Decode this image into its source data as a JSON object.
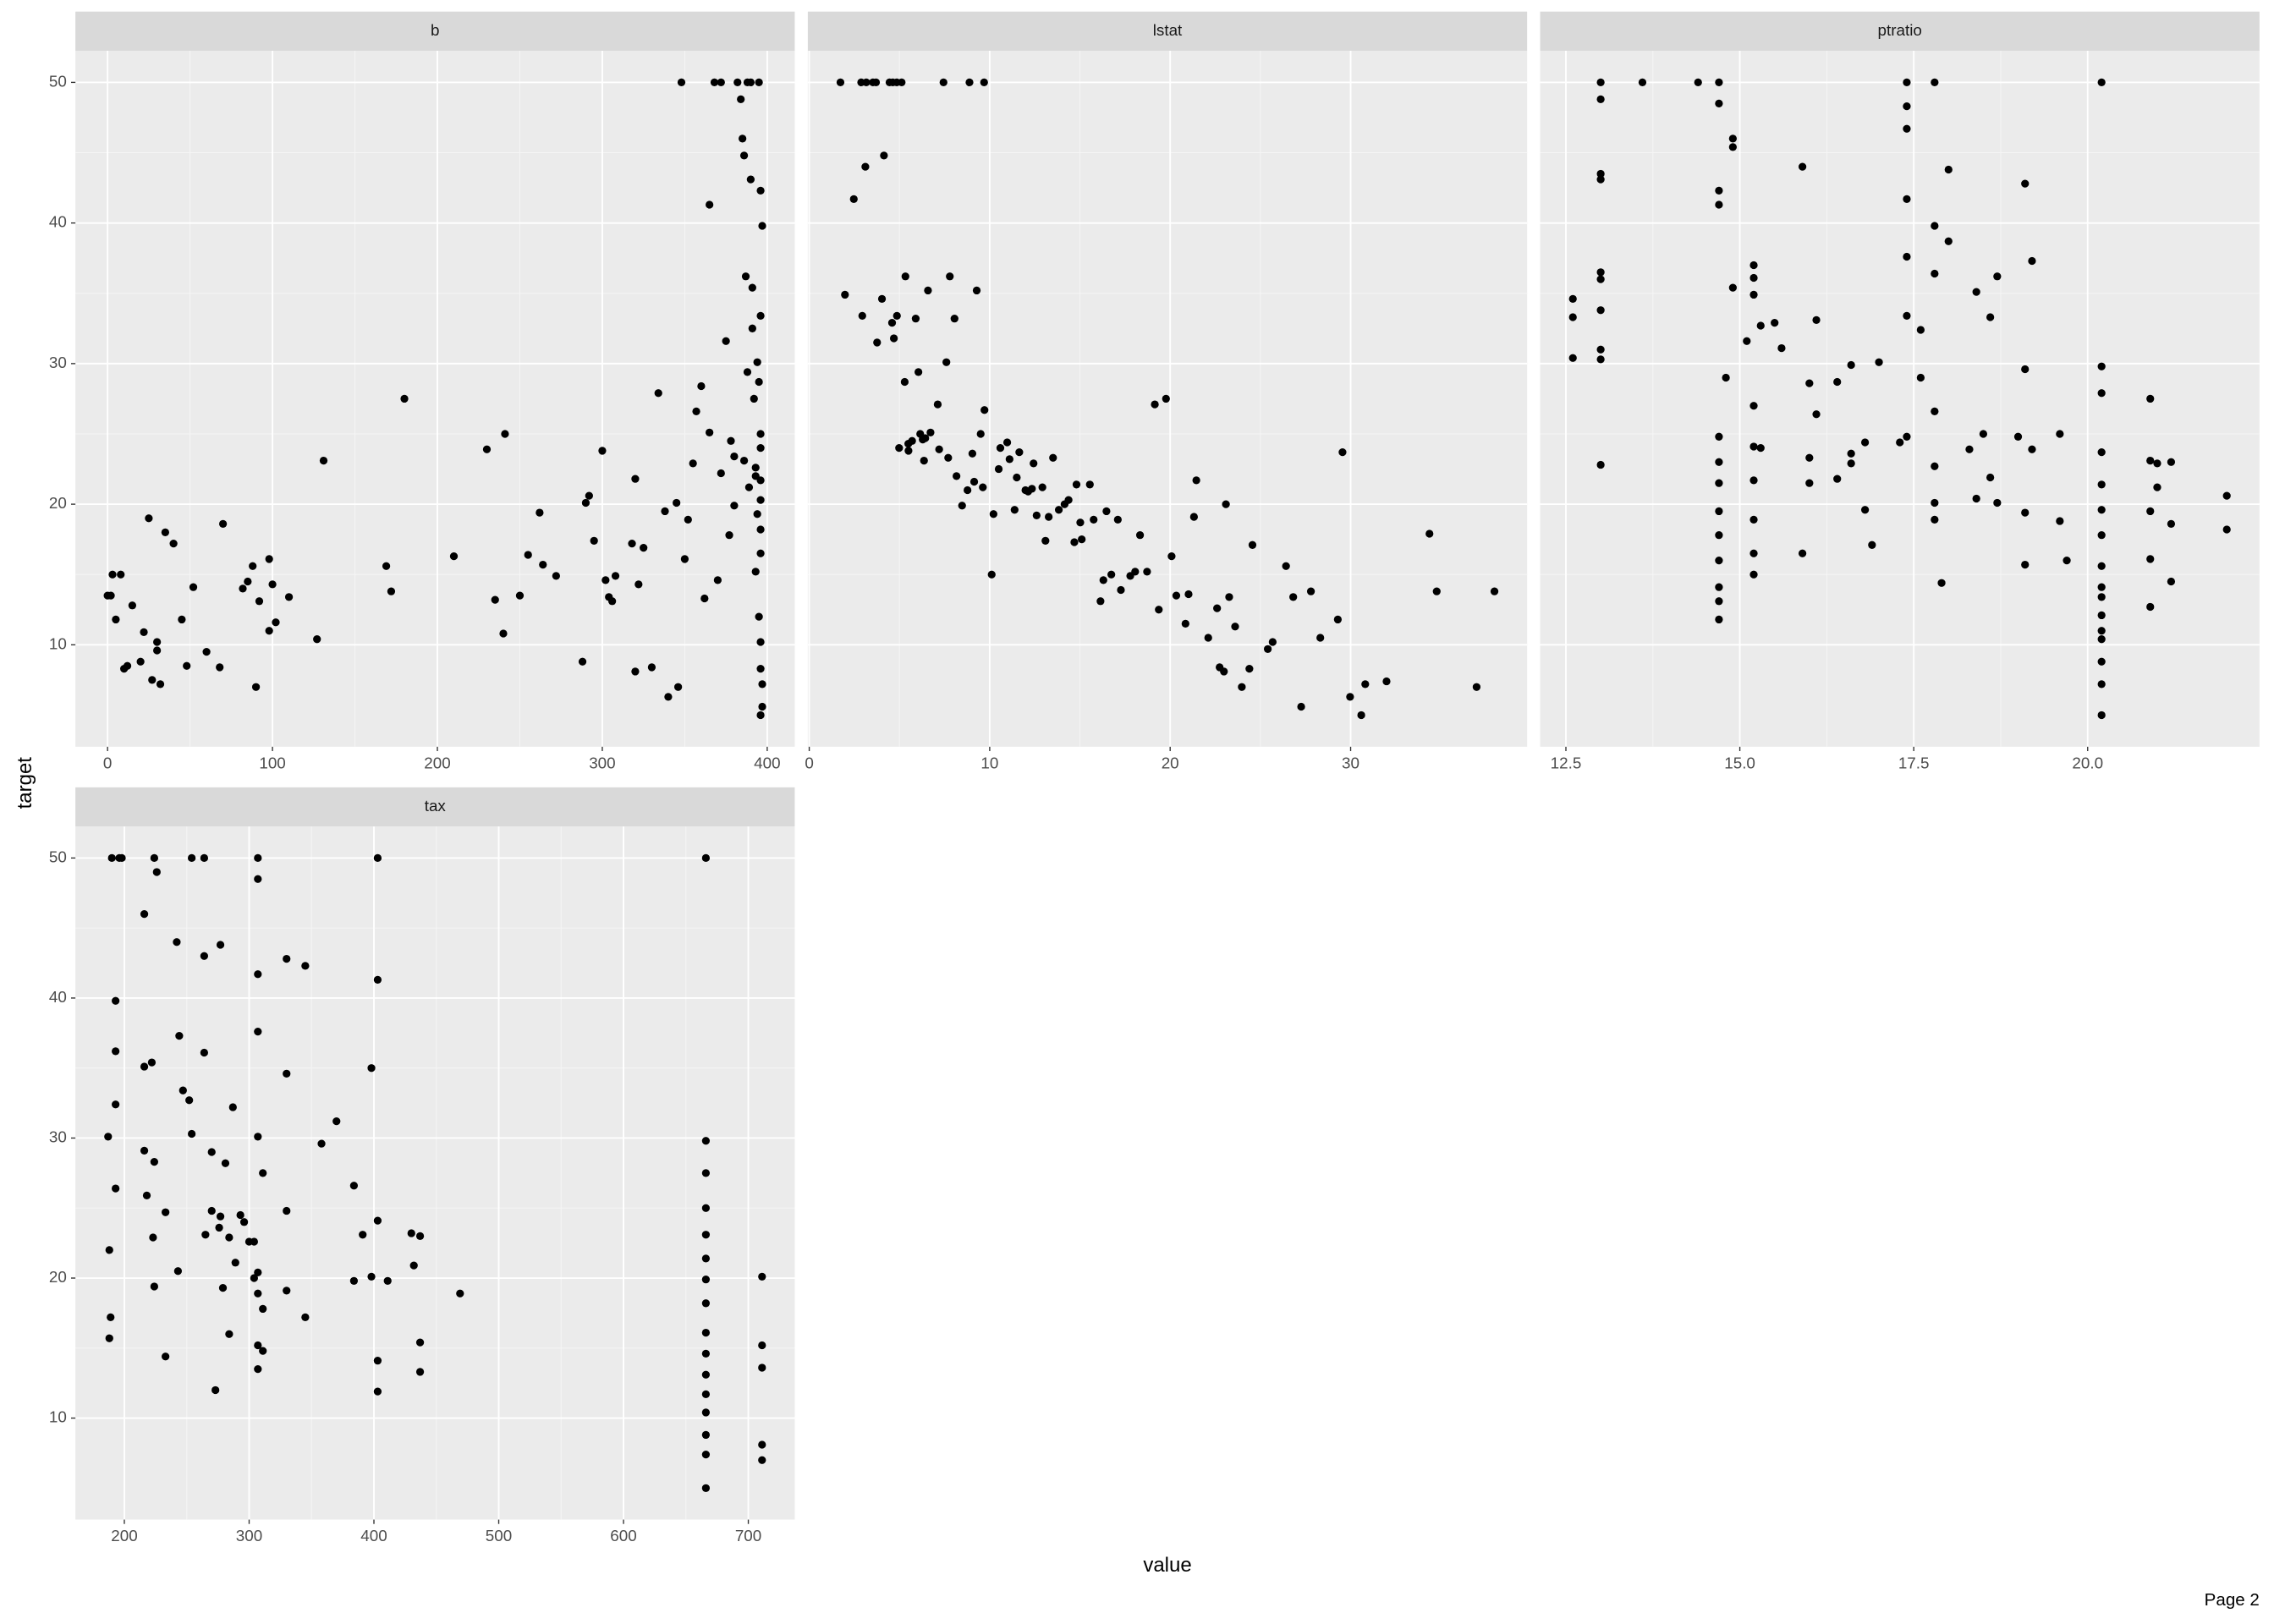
{
  "x_label": "value",
  "y_label": "target",
  "footer": "Page 2",
  "chart_data": [
    {
      "type": "scatter",
      "strip": "b",
      "color": "#000000",
      "grid": true,
      "xlim": [
        -19.5,
        416.7
      ],
      "ylim": [
        2.75,
        52.25
      ],
      "xticks": [
        0,
        100,
        200,
        300,
        400
      ],
      "yticks": [
        10,
        20,
        30,
        40,
        50
      ],
      "x": [
        0,
        2,
        3,
        5,
        8,
        10,
        12,
        15,
        20,
        22,
        25,
        27,
        30,
        30,
        32,
        35,
        40,
        45,
        48,
        52,
        60,
        68,
        70,
        82,
        85,
        88,
        90,
        92,
        98,
        98,
        100,
        102,
        110,
        127,
        131,
        169,
        172,
        180,
        210,
        230,
        235,
        240,
        241,
        250,
        255,
        262,
        264,
        272,
        288,
        290,
        292,
        295,
        300,
        302,
        304,
        306,
        308,
        318,
        320,
        320,
        322,
        325,
        330,
        334,
        338,
        340,
        345,
        346,
        348,
        350,
        352,
        355,
        357,
        360,
        362,
        365,
        368,
        372,
        375,
        378,
        380,
        382,
        384,
        385,
        386,
        387,
        388,
        390,
        390,
        391,
        392,
        393,
        393,
        394,
        394,
        395,
        395,
        396,
        396,
        396,
        396,
        396,
        396,
        396,
        396,
        396,
        396,
        396,
        395,
        397,
        397,
        397,
        393,
        389,
        386,
        380,
        377,
        372,
        370,
        365,
        388,
        391
      ],
      "values": [
        13.5,
        13.5,
        15,
        11.8,
        15,
        8.3,
        8.5,
        12.8,
        8.8,
        10.9,
        19,
        7.5,
        9.6,
        10.2,
        7.2,
        18,
        17.2,
        11.8,
        8.5,
        14.1,
        9.5,
        8.4,
        18.6,
        14,
        14.5,
        15.6,
        7,
        13.1,
        16.1,
        11,
        14.3,
        11.6,
        13.4,
        10.4,
        23.1,
        15.6,
        13.8,
        27.5,
        16.3,
        23.9,
        13.2,
        10.8,
        25,
        13.5,
        16.4,
        19.4,
        15.7,
        14.9,
        8.8,
        20.1,
        20.6,
        17.4,
        23.8,
        14.6,
        13.4,
        13.1,
        14.9,
        17.2,
        8.1,
        21.8,
        14.3,
        16.9,
        8.4,
        27.9,
        19.5,
        6.3,
        20.1,
        7,
        50,
        16.1,
        18.9,
        22.9,
        26.6,
        28.4,
        13.3,
        41.3,
        50,
        50,
        31.6,
        24.5,
        23.4,
        50,
        48.8,
        46,
        44.8,
        36.2,
        50,
        50,
        43.1,
        35.4,
        27.5,
        22,
        15.2,
        19.3,
        30.1,
        50,
        12,
        21.7,
        24,
        33.4,
        8.3,
        5,
        20.3,
        18.2,
        42.3,
        16.5,
        25,
        10.2,
        28.7,
        39.8,
        5.6,
        7.2,
        22.6,
        21.2,
        23.1,
        19.9,
        17.8,
        22.2,
        14.6,
        25.1,
        29.4,
        32.5
      ]
    },
    {
      "type": "scatter",
      "strip": "lstat",
      "color": "#000000",
      "grid": true,
      "xlim": [
        -0.08,
        39.78
      ],
      "ylim": [
        2.75,
        52.25
      ],
      "xticks": [
        0,
        10,
        20,
        30
      ],
      "yticks": [
        10,
        20,
        30,
        40,
        50
      ],
      "x": [
        1.73,
        1.98,
        2.47,
        2.88,
        2.94,
        3.11,
        3.16,
        3.53,
        3.7,
        3.76,
        4.03,
        4.14,
        4.45,
        4.59,
        4.63,
        4.69,
        4.85,
        4.86,
        4.98,
        5.12,
        5.29,
        5.33,
        5.5,
        5.7,
        5.9,
        6.05,
        6.15,
        6.29,
        6.36,
        6.58,
        6.72,
        7.12,
        7.2,
        7.44,
        7.6,
        7.7,
        7.79,
        8.05,
        8.16,
        8.47,
        8.77,
        8.88,
        9.04,
        9.14,
        9.5,
        9.69,
        9.71,
        10.11,
        10.21,
        10.5,
        10.97,
        11.1,
        11.38,
        11.64,
        11.98,
        12.13,
        12.43,
        12.6,
        12.92,
        13.09,
        13.27,
        13.51,
        13.83,
        14.15,
        14.37,
        14.69,
        15.02,
        15.1,
        15.55,
        15.76,
        16.14,
        16.3,
        16.74,
        17.1,
        17.27,
        17.79,
        18.06,
        18.33,
        18.72,
        19.15,
        19.37,
        19.77,
        20.08,
        20.34,
        20.85,
        21.02,
        21.32,
        21.45,
        22.11,
        22.6,
        22.98,
        23.09,
        23.27,
        23.6,
        23.97,
        24.39,
        24.56,
        25.41,
        25.68,
        26.42,
        26.82,
        27.26,
        27.8,
        28.32,
        29.29,
        29.55,
        29.97,
        30.59,
        30.81,
        31.99,
        34.37,
        34.77,
        36.98,
        37.97,
        9.28,
        6.43,
        5.49,
        11.5,
        14.81,
        16.47,
        9.62,
        12.34,
        10.59,
        22.74
      ],
      "values": [
        50,
        34.9,
        41.7,
        50,
        33.4,
        44,
        50,
        50,
        50,
        31.5,
        34.6,
        44.8,
        50,
        32.9,
        50,
        31.8,
        50,
        33.4,
        24,
        50,
        28.7,
        36.2,
        23.8,
        24.5,
        33.2,
        29.4,
        25,
        24.6,
        23.1,
        35.2,
        25.1,
        27.1,
        23.9,
        50,
        30.1,
        23.3,
        36.2,
        33.2,
        22,
        19.9,
        21,
        50,
        23.6,
        21.6,
        25,
        50,
        26.7,
        15,
        19.3,
        22.5,
        24.4,
        23.2,
        19.6,
        23.7,
        21,
        20.9,
        22.9,
        19.2,
        21.2,
        17.4,
        19.1,
        23.3,
        19.6,
        20,
        20.3,
        17.3,
        18.7,
        17.5,
        21.4,
        18.9,
        13.1,
        14.6,
        15,
        18.9,
        13.9,
        14.9,
        15.2,
        17.8,
        15.2,
        27.1,
        12.5,
        27.5,
        16.3,
        13.5,
        11.5,
        13.6,
        19.1,
        21.7,
        10.5,
        12.6,
        8.1,
        20,
        13.4,
        11.3,
        7,
        8.3,
        17.1,
        9.7,
        10.2,
        15.6,
        13.4,
        5.6,
        13.8,
        10.5,
        11.8,
        23.7,
        6.3,
        5,
        7.2,
        7.4,
        17.9,
        13.8,
        7,
        13.8,
        35.2,
        24.7,
        24.3,
        21.9,
        21.4,
        19.5,
        21.2,
        21.1,
        24,
        8.4
      ]
    },
    {
      "type": "scatter",
      "strip": "ptratio",
      "color": "#000000",
      "grid": true,
      "xlim": [
        12.13,
        22.47
      ],
      "ylim": [
        2.75,
        52.25
      ],
      "xticks": [
        12.5,
        {
          "value": 15,
          "label": "15.0"
        },
        17.5,
        {
          "value": 20,
          "label": "20.0"
        }
      ],
      "yticks": [
        10,
        20,
        30,
        40,
        50
      ],
      "x": [
        12.6,
        12.6,
        12.6,
        13,
        13,
        13,
        13,
        13,
        13,
        13,
        13,
        13,
        13,
        13.6,
        14.4,
        14.7,
        14.7,
        14.7,
        14.7,
        14.7,
        14.7,
        14.7,
        14.7,
        14.7,
        14.7,
        14.7,
        14.7,
        14.7,
        14.8,
        14.9,
        14.9,
        14.9,
        15.1,
        15.2,
        15.2,
        15.2,
        15.2,
        15.2,
        15.2,
        15.2,
        15.2,
        15.2,
        15.3,
        15.3,
        15.5,
        15.6,
        15.9,
        15.9,
        16,
        16,
        16,
        16.1,
        16.1,
        16.4,
        16.4,
        16.6,
        16.6,
        16.6,
        16.8,
        16.8,
        16.9,
        17,
        17.3,
        17.4,
        17.4,
        17.4,
        17.4,
        17.4,
        17.4,
        17.4,
        17.6,
        17.6,
        17.8,
        17.8,
        17.8,
        17.8,
        17.8,
        17.8,
        17.8,
        17.9,
        18,
        18,
        18.3,
        18.4,
        18.4,
        18.5,
        18.6,
        18.6,
        18.7,
        18.7,
        19,
        19.1,
        19.1,
        19.1,
        19.1,
        19.2,
        19.2,
        19.6,
        19.6,
        19.7,
        20.2,
        20.2,
        20.2,
        20.2,
        20.2,
        20.2,
        20.2,
        20.2,
        20.2,
        20.2,
        20.2,
        20.2,
        20.2,
        20.2,
        20.2,
        20.2,
        20.9,
        20.9,
        20.9,
        20.9,
        20.9,
        21,
        21,
        21.2,
        21.2,
        21.2,
        22,
        22
      ],
      "values": [
        30.4,
        33.3,
        34.6,
        50,
        48.8,
        43.1,
        43.5,
        36.5,
        36,
        33.8,
        31,
        30.3,
        22.8,
        50,
        50,
        50,
        48.5,
        42.3,
        41.3,
        24.8,
        23,
        21.5,
        19.5,
        17.8,
        16,
        14.1,
        13.1,
        11.8,
        29,
        35.4,
        46,
        45.4,
        31.6,
        37,
        36.1,
        34.9,
        27,
        24.1,
        21.7,
        18.9,
        16.5,
        15,
        24,
        32.7,
        32.9,
        31.1,
        44,
        16.5,
        28.6,
        23.3,
        21.5,
        33.1,
        26.4,
        28.7,
        21.8,
        22.9,
        23.6,
        29.9,
        19.6,
        24.4,
        17.1,
        30.1,
        24.4,
        50,
        48.3,
        46.7,
        41.7,
        37.6,
        33.4,
        24.8,
        32.4,
        29,
        50,
        39.8,
        36.4,
        26.6,
        22.7,
        20.1,
        18.9,
        14.4,
        43.8,
        38.7,
        23.9,
        20.4,
        35.1,
        25,
        33.3,
        21.9,
        36.2,
        20.1,
        24.8,
        42.8,
        29.6,
        19.4,
        15.7,
        37.3,
        23.9,
        25,
        18.8,
        16,
        50,
        29.8,
        27.9,
        23.7,
        21.4,
        19.6,
        17.8,
        15.6,
        14.1,
        13.4,
        12.1,
        11,
        10.4,
        8.8,
        7.2,
        5,
        27.5,
        23.1,
        19.5,
        16.1,
        12.7,
        22.9,
        21.2,
        18.6,
        14.5,
        23,
        20.6,
        18.2
      ]
    },
    {
      "type": "scatter",
      "strip": "tax",
      "color": "#000000",
      "grid": true,
      "xlim": [
        160.8,
        737.2
      ],
      "ylim": [
        2.75,
        52.25
      ],
      "xticks": [
        200,
        300,
        400,
        500,
        600,
        700
      ],
      "yticks": [
        10,
        20,
        30,
        40,
        50
      ],
      "x": [
        187,
        188,
        188,
        189,
        190,
        193,
        193,
        193,
        193,
        196,
        198,
        216,
        216,
        216,
        218,
        222,
        223,
        224,
        224,
        224,
        226,
        233,
        233,
        242,
        243,
        244,
        247,
        252,
        254,
        254,
        264,
        264,
        264,
        265,
        270,
        270,
        273,
        276,
        277,
        277,
        279,
        281,
        284,
        284,
        287,
        289,
        293,
        296,
        300,
        304,
        304,
        307,
        307,
        307,
        307,
        307,
        307,
        307,
        307,
        307,
        311,
        311,
        311,
        330,
        330,
        330,
        330,
        345,
        345,
        358,
        370,
        384,
        384,
        391,
        398,
        398,
        403,
        403,
        403,
        403,
        403,
        411,
        430,
        432,
        437,
        437,
        437,
        469,
        666,
        666,
        666,
        666,
        666,
        666,
        666,
        666,
        666,
        666,
        666,
        666,
        666,
        666,
        666,
        666,
        711,
        711,
        711,
        711,
        711
      ],
      "values": [
        30.1,
        22,
        15.7,
        17.2,
        50,
        39.8,
        36.2,
        32.4,
        26.4,
        50,
        50,
        46,
        35.1,
        29.1,
        25.9,
        35.4,
        22.9,
        19.4,
        28.3,
        50,
        49,
        14.4,
        24.7,
        44,
        20.5,
        37.3,
        33.4,
        32.7,
        50,
        30.3,
        50,
        43,
        36.1,
        23.1,
        24.8,
        29,
        12,
        23.6,
        43.8,
        24.4,
        19.3,
        28.2,
        16,
        22.9,
        32.2,
        21.1,
        24.5,
        24,
        22.6,
        22.6,
        20,
        50,
        48.5,
        41.7,
        37.6,
        30.1,
        20.4,
        18.9,
        15.2,
        13.5,
        27.5,
        17.8,
        14.8,
        42.8,
        34.6,
        24.8,
        19.1,
        42.3,
        17.2,
        29.6,
        31.2,
        26.6,
        19.8,
        23.1,
        35,
        20.1,
        50,
        41.3,
        24.1,
        14.1,
        11.9,
        19.8,
        23.2,
        20.9,
        23,
        15.4,
        13.3,
        18.9,
        50,
        29.8,
        27.5,
        25,
        23.1,
        21.4,
        19.9,
        18.2,
        16.1,
        14.6,
        13.1,
        11.7,
        10.4,
        8.8,
        7.4,
        5,
        20.1,
        15.2,
        13.6,
        8.1,
        7
      ]
    }
  ]
}
